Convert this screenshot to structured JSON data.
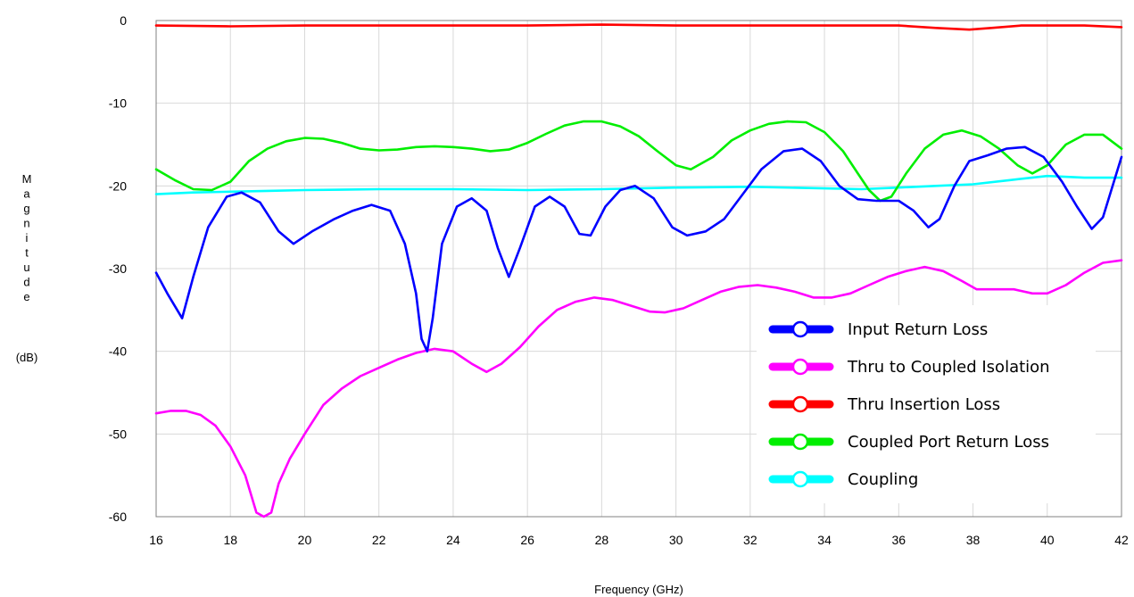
{
  "chart_data": {
    "type": "line",
    "xlabel": "Frequency (GHz)",
    "ylabel_letters": [
      "M",
      "a",
      "g",
      "n",
      "i",
      "t",
      "u",
      "d",
      "e"
    ],
    "ylabel_unit": "(dB)",
    "xlim": [
      16,
      42
    ],
    "ylim": [
      -60,
      0
    ],
    "x_ticks": [
      16,
      18,
      20,
      22,
      24,
      26,
      28,
      30,
      32,
      34,
      36,
      38,
      40,
      42
    ],
    "y_ticks": [
      0,
      -10,
      -20,
      -30,
      -40,
      -50,
      -60
    ],
    "grid": true,
    "legend_position": "bottom-right",
    "series": [
      {
        "name": "Input Return Loss",
        "color": "#0000ff",
        "points": [
          [
            16,
            -30.5
          ],
          [
            16.3,
            -33
          ],
          [
            16.7,
            -36
          ],
          [
            17,
            -31
          ],
          [
            17.4,
            -25
          ],
          [
            17.9,
            -21.3
          ],
          [
            18.3,
            -20.8
          ],
          [
            18.8,
            -22
          ],
          [
            19.3,
            -25.5
          ],
          [
            19.7,
            -27
          ],
          [
            20.2,
            -25.5
          ],
          [
            20.8,
            -24
          ],
          [
            21.3,
            -23
          ],
          [
            21.8,
            -22.3
          ],
          [
            22.3,
            -23
          ],
          [
            22.7,
            -27
          ],
          [
            23.0,
            -33
          ],
          [
            23.15,
            -38.5
          ],
          [
            23.3,
            -40
          ],
          [
            23.45,
            -36
          ],
          [
            23.7,
            -27
          ],
          [
            24.1,
            -22.5
          ],
          [
            24.5,
            -21.5
          ],
          [
            24.9,
            -23
          ],
          [
            25.2,
            -27.5
          ],
          [
            25.5,
            -31
          ],
          [
            25.8,
            -27.5
          ],
          [
            26.2,
            -22.5
          ],
          [
            26.6,
            -21.3
          ],
          [
            27.0,
            -22.5
          ],
          [
            27.4,
            -25.8
          ],
          [
            27.7,
            -26
          ],
          [
            28.1,
            -22.5
          ],
          [
            28.5,
            -20.5
          ],
          [
            28.9,
            -20
          ],
          [
            29.4,
            -21.5
          ],
          [
            29.9,
            -25
          ],
          [
            30.3,
            -26
          ],
          [
            30.8,
            -25.5
          ],
          [
            31.3,
            -24
          ],
          [
            31.8,
            -21
          ],
          [
            32.3,
            -18
          ],
          [
            32.9,
            -15.8
          ],
          [
            33.4,
            -15.5
          ],
          [
            33.9,
            -17
          ],
          [
            34.4,
            -20
          ],
          [
            34.9,
            -21.6
          ],
          [
            35.4,
            -21.8
          ],
          [
            36.0,
            -21.8
          ],
          [
            36.4,
            -23
          ],
          [
            36.8,
            -25
          ],
          [
            37.1,
            -24
          ],
          [
            37.5,
            -20
          ],
          [
            37.9,
            -17
          ],
          [
            38.4,
            -16.3
          ],
          [
            38.9,
            -15.5
          ],
          [
            39.4,
            -15.3
          ],
          [
            39.9,
            -16.5
          ],
          [
            40.4,
            -19.5
          ],
          [
            40.8,
            -22.5
          ],
          [
            41.2,
            -25.2
          ],
          [
            41.5,
            -23.8
          ],
          [
            42,
            -16.5
          ]
        ]
      },
      {
        "name": "Thru to Coupled Isolation",
        "color": "#ff00ff",
        "points": [
          [
            16,
            -47.5
          ],
          [
            16.4,
            -47.2
          ],
          [
            16.8,
            -47.2
          ],
          [
            17.2,
            -47.7
          ],
          [
            17.6,
            -49
          ],
          [
            18.0,
            -51.5
          ],
          [
            18.4,
            -55
          ],
          [
            18.7,
            -59.5
          ],
          [
            18.9,
            -60.5
          ],
          [
            19.1,
            -59.5
          ],
          [
            19.3,
            -56
          ],
          [
            19.6,
            -53
          ],
          [
            20.0,
            -50
          ],
          [
            20.5,
            -46.5
          ],
          [
            21.0,
            -44.5
          ],
          [
            21.5,
            -43
          ],
          [
            22.0,
            -42
          ],
          [
            22.5,
            -41
          ],
          [
            23.0,
            -40.2
          ],
          [
            23.5,
            -39.7
          ],
          [
            24.0,
            -40
          ],
          [
            24.5,
            -41.5
          ],
          [
            24.9,
            -42.5
          ],
          [
            25.3,
            -41.5
          ],
          [
            25.8,
            -39.5
          ],
          [
            26.3,
            -37
          ],
          [
            26.8,
            -35
          ],
          [
            27.3,
            -34
          ],
          [
            27.8,
            -33.5
          ],
          [
            28.3,
            -33.8
          ],
          [
            28.8,
            -34.5
          ],
          [
            29.3,
            -35.2
          ],
          [
            29.7,
            -35.3
          ],
          [
            30.2,
            -34.8
          ],
          [
            30.7,
            -33.8
          ],
          [
            31.2,
            -32.8
          ],
          [
            31.7,
            -32.2
          ],
          [
            32.2,
            -32
          ],
          [
            32.7,
            -32.3
          ],
          [
            33.2,
            -32.8
          ],
          [
            33.7,
            -33.5
          ],
          [
            34.2,
            -33.5
          ],
          [
            34.7,
            -33
          ],
          [
            35.2,
            -32
          ],
          [
            35.7,
            -31
          ],
          [
            36.2,
            -30.3
          ],
          [
            36.7,
            -29.8
          ],
          [
            37.2,
            -30.3
          ],
          [
            37.7,
            -31.5
          ],
          [
            38.1,
            -32.5
          ],
          [
            38.6,
            -32.5
          ],
          [
            39.1,
            -32.5
          ],
          [
            39.6,
            -33
          ],
          [
            40.0,
            -33
          ],
          [
            40.5,
            -32
          ],
          [
            41.0,
            -30.5
          ],
          [
            41.5,
            -29.3
          ],
          [
            42,
            -29
          ]
        ]
      },
      {
        "name": "Thru Insertion Loss",
        "color": "#ff0000",
        "points": [
          [
            16,
            -0.6
          ],
          [
            18,
            -0.7
          ],
          [
            20,
            -0.6
          ],
          [
            22,
            -0.6
          ],
          [
            24,
            -0.6
          ],
          [
            26,
            -0.6
          ],
          [
            28,
            -0.5
          ],
          [
            30,
            -0.6
          ],
          [
            32,
            -0.6
          ],
          [
            34,
            -0.6
          ],
          [
            36,
            -0.6
          ],
          [
            37,
            -0.9
          ],
          [
            37.9,
            -1.1
          ],
          [
            38.5,
            -0.9
          ],
          [
            39.3,
            -0.6
          ],
          [
            40,
            -0.6
          ],
          [
            41,
            -0.6
          ],
          [
            42,
            -0.8
          ]
        ]
      },
      {
        "name": "Coupled Port Return Loss",
        "color": "#00ee00",
        "points": [
          [
            16,
            -18
          ],
          [
            16.5,
            -19.3
          ],
          [
            17,
            -20.4
          ],
          [
            17.5,
            -20.5
          ],
          [
            18.0,
            -19.5
          ],
          [
            18.5,
            -17
          ],
          [
            19.0,
            -15.5
          ],
          [
            19.5,
            -14.6
          ],
          [
            20.0,
            -14.2
          ],
          [
            20.5,
            -14.3
          ],
          [
            21.0,
            -14.8
          ],
          [
            21.5,
            -15.5
          ],
          [
            22.0,
            -15.7
          ],
          [
            22.5,
            -15.6
          ],
          [
            23.0,
            -15.3
          ],
          [
            23.5,
            -15.2
          ],
          [
            24.0,
            -15.3
          ],
          [
            24.5,
            -15.5
          ],
          [
            25.0,
            -15.8
          ],
          [
            25.5,
            -15.6
          ],
          [
            26.0,
            -14.8
          ],
          [
            26.5,
            -13.7
          ],
          [
            27.0,
            -12.7
          ],
          [
            27.5,
            -12.2
          ],
          [
            28.0,
            -12.2
          ],
          [
            28.5,
            -12.8
          ],
          [
            29.0,
            -14
          ],
          [
            29.5,
            -15.8
          ],
          [
            30.0,
            -17.5
          ],
          [
            30.4,
            -18
          ],
          [
            31.0,
            -16.5
          ],
          [
            31.5,
            -14.5
          ],
          [
            32.0,
            -13.3
          ],
          [
            32.5,
            -12.5
          ],
          [
            33.0,
            -12.2
          ],
          [
            33.5,
            -12.3
          ],
          [
            34.0,
            -13.5
          ],
          [
            34.5,
            -15.8
          ],
          [
            34.9,
            -18.5
          ],
          [
            35.2,
            -20.5
          ],
          [
            35.5,
            -21.8
          ],
          [
            35.8,
            -21.3
          ],
          [
            36.2,
            -18.5
          ],
          [
            36.7,
            -15.5
          ],
          [
            37.2,
            -13.8
          ],
          [
            37.7,
            -13.3
          ],
          [
            38.2,
            -14
          ],
          [
            38.7,
            -15.5
          ],
          [
            39.2,
            -17.5
          ],
          [
            39.6,
            -18.5
          ],
          [
            40.0,
            -17.5
          ],
          [
            40.5,
            -15
          ],
          [
            41.0,
            -13.8
          ],
          [
            41.5,
            -13.8
          ],
          [
            42,
            -15.5
          ]
        ]
      },
      {
        "name": "Coupling",
        "color": "#00ffff",
        "points": [
          [
            16,
            -21
          ],
          [
            17,
            -20.8
          ],
          [
            18,
            -20.7
          ],
          [
            19,
            -20.6
          ],
          [
            20,
            -20.5
          ],
          [
            22,
            -20.4
          ],
          [
            24,
            -20.4
          ],
          [
            26,
            -20.5
          ],
          [
            28,
            -20.4
          ],
          [
            30,
            -20.2
          ],
          [
            32,
            -20.1
          ],
          [
            34,
            -20.3
          ],
          [
            35,
            -20.4
          ],
          [
            36,
            -20.2
          ],
          [
            37,
            -20
          ],
          [
            38,
            -19.8
          ],
          [
            39,
            -19.3
          ],
          [
            40,
            -18.8
          ],
          [
            41,
            -19
          ],
          [
            42,
            -19
          ]
        ]
      }
    ]
  }
}
